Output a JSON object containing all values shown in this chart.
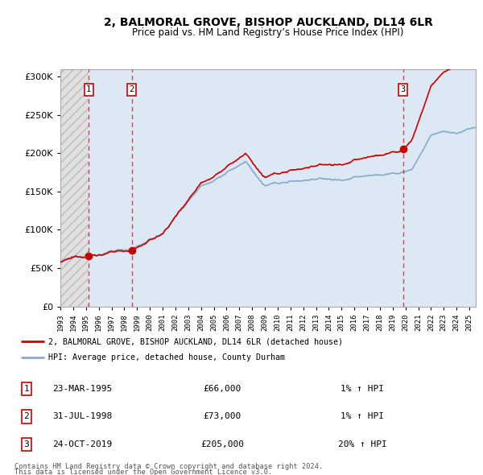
{
  "title": "2, BALMORAL GROVE, BISHOP AUCKLAND, DL14 6LR",
  "subtitle": "Price paid vs. HM Land Registry’s House Price Index (HPI)",
  "ytick_values": [
    0,
    50000,
    100000,
    150000,
    200000,
    250000,
    300000
  ],
  "ylim": [
    0,
    310000
  ],
  "xlim_start": 1993.0,
  "xlim_end": 2025.5,
  "transactions": [
    {
      "num": 1,
      "date": "23-MAR-1995",
      "price": 66000,
      "year": 1995.22,
      "hpi_pct": "1%"
    },
    {
      "num": 2,
      "date": "31-JUL-1998",
      "price": 73000,
      "year": 1998.58,
      "hpi_pct": "1%"
    },
    {
      "num": 3,
      "date": "24-OCT-2019",
      "price": 205000,
      "year": 2019.81,
      "hpi_pct": "20%"
    }
  ],
  "legend_property": "2, BALMORAL GROVE, BISHOP AUCKLAND, DL14 6LR (detached house)",
  "legend_hpi": "HPI: Average price, detached house, County Durham",
  "footer1": "Contains HM Land Registry data © Crown copyright and database right 2024.",
  "footer2": "This data is licensed under the Open Government Licence v3.0.",
  "property_line_color": "#cc0000",
  "hpi_line_color": "#88aacc",
  "hpi_fill_color": "#dde8f5",
  "dashed_line_color": "#cc3333",
  "background_chart": "#ffffff",
  "grid_color": "#cccccc",
  "hatch_fill": "#e0e0e0",
  "transaction_box_color": "#cc0000"
}
